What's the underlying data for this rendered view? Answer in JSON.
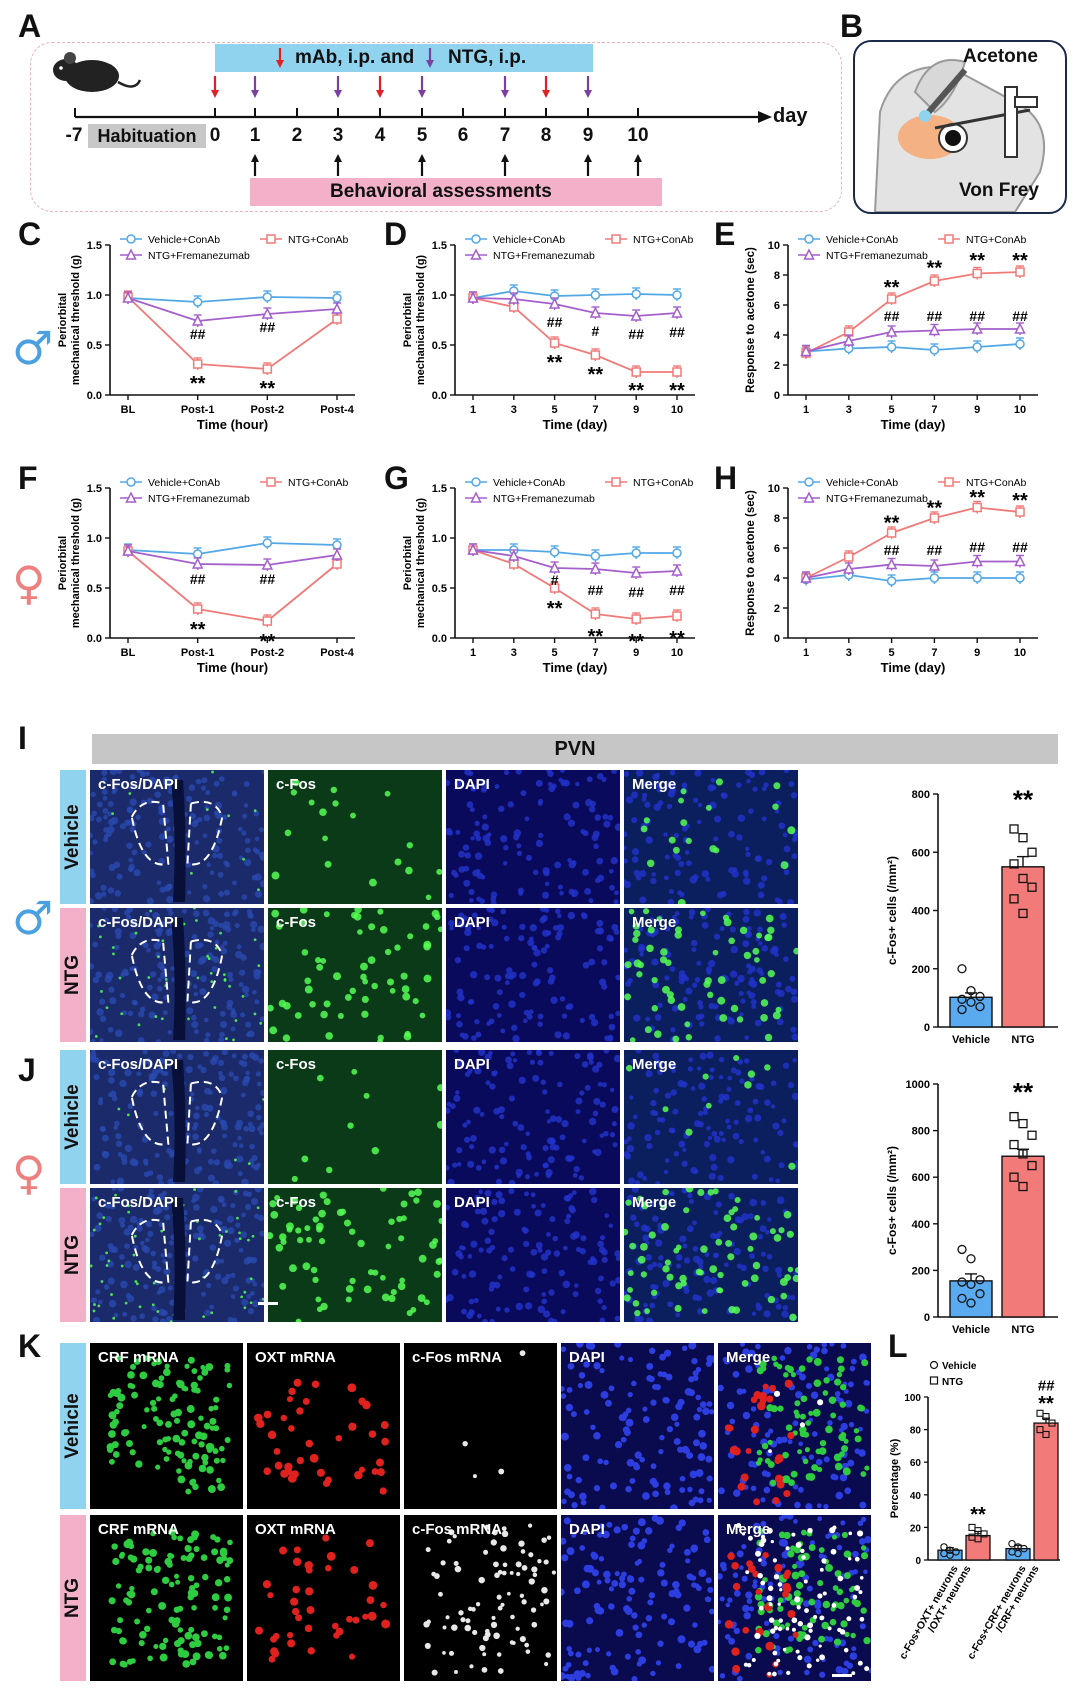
{
  "panel_letters": [
    "A",
    "B",
    "C",
    "D",
    "E",
    "F",
    "G",
    "H",
    "I",
    "J",
    "K",
    "L"
  ],
  "timeline": {
    "treatment_label_1": "mAb, i.p. and",
    "treatment_label_2": "NTG, i.p.",
    "assess_label": "Behavioral assessments",
    "habituation_label": "Habituation",
    "axis_unit": "day",
    "ticks": [
      "-7",
      "0",
      "1",
      "2",
      "3",
      "4",
      "5",
      "6",
      "7",
      "8",
      "9",
      "10"
    ],
    "mab_days": [
      0,
      4,
      8
    ],
    "ntg_days": [
      1,
      3,
      5,
      7,
      9
    ],
    "assess_days": [
      1,
      3,
      5,
      7,
      9,
      10
    ],
    "colors": {
      "mab": "#e31f26",
      "ntg": "#7b3fa0"
    }
  },
  "diagram_b": {
    "top_label": "Acetone",
    "bottom_label": "Von Frey"
  },
  "sex_symbols": {
    "male": "♂",
    "female": "♀",
    "male_color": "#4aa0e0",
    "female_color": "#ee8080"
  },
  "legend": {
    "vehicle": "Vehicle+ConAb",
    "ntg_conab": "NTG+ConAb",
    "ntg_frem": "NTG+Fremanezumab"
  },
  "series_colors": {
    "vehicle": "#52a8e6",
    "ntg_conab": "#ef7a78",
    "ntg_frem": "#a55fcc"
  },
  "chart_data": [
    {
      "panel": "C",
      "type": "line",
      "xlabel": "Time (hour)",
      "ylabel": [
        "Periorbital",
        "mechanical threshold (g)"
      ],
      "categories": [
        "BL",
        "Post-1",
        "Post-2",
        "Post-4"
      ],
      "ylim": [
        0,
        1.5
      ],
      "yticks": [
        "0.0",
        "0.5",
        "1.0",
        "1.5"
      ],
      "series": [
        {
          "name": "Vehicle+ConAb",
          "values": [
            0.97,
            0.93,
            0.98,
            0.97
          ]
        },
        {
          "name": "NTG+ConAb",
          "values": [
            0.98,
            0.31,
            0.26,
            0.76
          ]
        },
        {
          "name": "NTG+Fremanezumab",
          "values": [
            0.97,
            0.74,
            0.81,
            0.86
          ]
        }
      ],
      "annotations": [
        {
          "text": "##",
          "x": "Post-1",
          "y": 0.6
        },
        {
          "text": "**",
          "x": "Post-1",
          "y": 0.15
        },
        {
          "text": "##",
          "x": "Post-2",
          "y": 0.67
        },
        {
          "text": "**",
          "x": "Post-2",
          "y": 0.1
        }
      ]
    },
    {
      "panel": "D",
      "type": "line",
      "xlabel": "Time (day)",
      "ylabel": [
        "Periorbital",
        "mechanical threshold (g)"
      ],
      "categories": [
        "1",
        "3",
        "5",
        "7",
        "9",
        "10"
      ],
      "ylim": [
        0,
        1.5
      ],
      "yticks": [
        "0.0",
        "0.5",
        "1.0",
        "1.5"
      ],
      "series": [
        {
          "name": "Vehicle+ConAb",
          "values": [
            0.97,
            1.04,
            0.99,
            1.0,
            1.01,
            1.0
          ]
        },
        {
          "name": "NTG+ConAb",
          "values": [
            0.97,
            0.88,
            0.52,
            0.4,
            0.23,
            0.23
          ]
        },
        {
          "name": "NTG+Fremanezumab",
          "values": [
            0.97,
            0.96,
            0.91,
            0.82,
            0.79,
            0.82
          ]
        }
      ],
      "annotations": [
        {
          "text": "##",
          "x": "5",
          "y": 0.72
        },
        {
          "text": "**",
          "x": "5",
          "y": 0.36
        },
        {
          "text": "#",
          "x": "7",
          "y": 0.63
        },
        {
          "text": "**",
          "x": "7",
          "y": 0.24
        },
        {
          "text": "##",
          "x": "9",
          "y": 0.6
        },
        {
          "text": "**",
          "x": "9",
          "y": 0.08
        },
        {
          "text": "##",
          "x": "10",
          "y": 0.62
        },
        {
          "text": "**",
          "x": "10",
          "y": 0.08
        }
      ]
    },
    {
      "panel": "E",
      "type": "line",
      "xlabel": "Time (day)",
      "ylabel": [
        "Response to acetone (sec)"
      ],
      "categories": [
        "1",
        "3",
        "5",
        "7",
        "9",
        "10"
      ],
      "ylim": [
        0,
        10
      ],
      "yticks": [
        "0",
        "2",
        "4",
        "6",
        "8",
        "10"
      ],
      "series": [
        {
          "name": "Vehicle+ConAb",
          "values": [
            2.9,
            3.1,
            3.2,
            3.0,
            3.2,
            3.4
          ]
        },
        {
          "name": "NTG+ConAb",
          "values": [
            2.8,
            4.2,
            6.4,
            7.6,
            8.1,
            8.2
          ]
        },
        {
          "name": "NTG+Fremanezumab",
          "values": [
            2.9,
            3.6,
            4.2,
            4.3,
            4.4,
            4.4
          ]
        }
      ],
      "annotations": [
        {
          "text": "##",
          "x": "5",
          "y": 5.2
        },
        {
          "text": "**",
          "x": "5",
          "y": 7.4
        },
        {
          "text": "##",
          "x": "7",
          "y": 5.2
        },
        {
          "text": "**",
          "x": "7",
          "y": 8.7
        },
        {
          "text": "##",
          "x": "9",
          "y": 5.2
        },
        {
          "text": "**",
          "x": "9",
          "y": 9.2
        },
        {
          "text": "##",
          "x": "10",
          "y": 5.2
        },
        {
          "text": "**",
          "x": "10",
          "y": 9.2
        }
      ]
    },
    {
      "panel": "F",
      "type": "line",
      "xlabel": "Time (hour)",
      "ylabel": [
        "Periorbital",
        "mechanical threshold (g)"
      ],
      "categories": [
        "BL",
        "Post-1",
        "Post-2",
        "Post-4"
      ],
      "ylim": [
        0,
        1.5
      ],
      "yticks": [
        "0.0",
        "0.5",
        "1.0",
        "1.5"
      ],
      "series": [
        {
          "name": "Vehicle+ConAb",
          "values": [
            0.88,
            0.84,
            0.95,
            0.93
          ]
        },
        {
          "name": "NTG+ConAb",
          "values": [
            0.87,
            0.29,
            0.17,
            0.74
          ]
        },
        {
          "name": "NTG+Fremanezumab",
          "values": [
            0.87,
            0.74,
            0.73,
            0.83
          ]
        }
      ],
      "annotations": [
        {
          "text": "##",
          "x": "Post-1",
          "y": 0.58
        },
        {
          "text": "**",
          "x": "Post-1",
          "y": 0.12
        },
        {
          "text": "##",
          "x": "Post-2",
          "y": 0.58
        },
        {
          "text": "**",
          "x": "Post-2",
          "y": 0.0
        }
      ]
    },
    {
      "panel": "G",
      "type": "line",
      "xlabel": "Time (day)",
      "ylabel": [
        "Periorbital",
        "mechanical threshold (g)"
      ],
      "categories": [
        "1",
        "3",
        "5",
        "7",
        "9",
        "10"
      ],
      "ylim": [
        0,
        1.5
      ],
      "yticks": [
        "0.0",
        "0.5",
        "1.0",
        "1.5"
      ],
      "series": [
        {
          "name": "Vehicle+ConAb",
          "values": [
            0.88,
            0.88,
            0.86,
            0.82,
            0.85,
            0.85
          ]
        },
        {
          "name": "NTG+ConAb",
          "values": [
            0.88,
            0.74,
            0.5,
            0.24,
            0.19,
            0.22
          ]
        },
        {
          "name": "NTG+Fremanezumab",
          "values": [
            0.88,
            0.82,
            0.7,
            0.69,
            0.65,
            0.67
          ]
        }
      ],
      "annotations": [
        {
          "text": "#",
          "x": "5",
          "y": 0.57
        },
        {
          "text": "**",
          "x": "5",
          "y": 0.33
        },
        {
          "text": "##",
          "x": "7",
          "y": 0.47
        },
        {
          "text": "**",
          "x": "7",
          "y": 0.05
        },
        {
          "text": "##",
          "x": "9",
          "y": 0.45
        },
        {
          "text": "**",
          "x": "9",
          "y": 0.0
        },
        {
          "text": "##",
          "x": "10",
          "y": 0.47
        },
        {
          "text": "**",
          "x": "10",
          "y": 0.03
        }
      ]
    },
    {
      "panel": "H",
      "type": "line",
      "xlabel": "Time (day)",
      "ylabel": [
        "Response to acetone (sec)"
      ],
      "categories": [
        "1",
        "3",
        "5",
        "7",
        "9",
        "10"
      ],
      "ylim": [
        0,
        10
      ],
      "yticks": [
        "0",
        "2",
        "4",
        "6",
        "8",
        "10"
      ],
      "series": [
        {
          "name": "Vehicle+ConAb",
          "values": [
            3.9,
            4.2,
            3.8,
            4.0,
            4.0,
            4.0
          ]
        },
        {
          "name": "NTG+ConAb",
          "values": [
            4.0,
            5.4,
            7.0,
            8.0,
            8.7,
            8.4
          ]
        },
        {
          "name": "NTG+Fremanezumab",
          "values": [
            4.0,
            4.6,
            4.9,
            4.8,
            5.1,
            5.1
          ]
        }
      ],
      "annotations": [
        {
          "text": "##",
          "x": "5",
          "y": 5.8
        },
        {
          "text": "**",
          "x": "5",
          "y": 7.9
        },
        {
          "text": "##",
          "x": "7",
          "y": 5.8
        },
        {
          "text": "**",
          "x": "7",
          "y": 8.9
        },
        {
          "text": "##",
          "x": "9",
          "y": 6.0
        },
        {
          "text": "**",
          "x": "9",
          "y": 9.6
        },
        {
          "text": "##",
          "x": "10",
          "y": 6.0
        },
        {
          "text": "**",
          "x": "10",
          "y": 9.4
        }
      ]
    },
    {
      "panel": "I",
      "type": "bar",
      "ylabel": "c-Fos+ cells (/mm²)",
      "categories": [
        "Vehicle",
        "NTG"
      ],
      "values": [
        102,
        550
      ],
      "errors": [
        15,
        35
      ],
      "ylim": [
        0,
        800
      ],
      "yticks": [
        "0",
        "200",
        "400",
        "600",
        "800"
      ],
      "points": [
        [
          200,
          125,
          105,
          95,
          85,
          70,
          60
        ],
        [
          680,
          650,
          600,
          560,
          510,
          480,
          440,
          390
        ]
      ],
      "annotations": [
        {
          "text": "**",
          "bar": 1
        }
      ]
    },
    {
      "panel": "J",
      "type": "bar",
      "ylabel": "c-Fos+ cells (/mm²)",
      "categories": [
        "Vehicle",
        "NTG"
      ],
      "values": [
        155,
        690
      ],
      "errors": [
        30,
        30
      ],
      "ylim": [
        0,
        1000
      ],
      "yticks": [
        "0",
        "200",
        "400",
        "600",
        "800",
        "1000"
      ],
      "points": [
        [
          290,
          250,
          160,
          150,
          140,
          100,
          80,
          60
        ],
        [
          860,
          830,
          780,
          740,
          700,
          650,
          600,
          560
        ]
      ],
      "annotations": [
        {
          "text": "**",
          "bar": 1
        }
      ]
    },
    {
      "panel": "L",
      "type": "bar",
      "ylabel": "Percentage (%)",
      "categories": [
        "c-Fos+OXT+ neurons /OXT+ neurons",
        "c-Fos+CRF+ neurons /CRF+ neurons"
      ],
      "series": [
        {
          "name": "Vehicle",
          "values": [
            6,
            7
          ],
          "errors": [
            1.5,
            2
          ]
        },
        {
          "name": "NTG",
          "values": [
            15,
            84
          ],
          "errors": [
            2.5,
            3
          ]
        }
      ],
      "ylim": [
        0,
        100
      ],
      "yticks": [
        "0",
        "20",
        "40",
        "60",
        "80",
        "100"
      ],
      "points": [
        [
          [
            8,
            6,
            5,
            4,
            3
          ],
          [
            20,
            18,
            16,
            14,
            13
          ]
        ],
        [
          [
            10,
            8,
            7,
            5,
            4
          ],
          [
            90,
            88,
            84,
            80,
            77
          ]
        ]
      ],
      "annotations": [
        {
          "text": "**",
          "group": 0
        },
        {
          "text": "##",
          "group": 1
        },
        {
          "text": "**",
          "group": 1
        }
      ]
    }
  ],
  "pvn_label": "PVN",
  "side_labels": {
    "vehicle": "Vehicle",
    "ntg": "NTG"
  },
  "micro_cols_ij": [
    "c-Fos/DAPI",
    "c-Fos",
    "DAPI",
    "Merge"
  ],
  "micro_cols_k": [
    "CRF mRNA",
    "OXT mRNA",
    "c-Fos mRNA",
    "DAPI",
    "Merge"
  ]
}
